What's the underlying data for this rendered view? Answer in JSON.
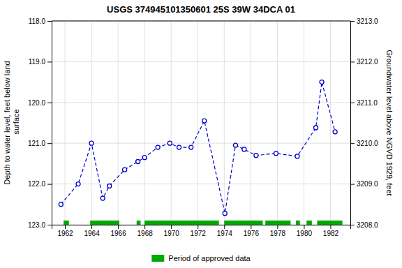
{
  "chart_data": {
    "type": "line",
    "title": "USGS 374945101350601 25S 39W 34DCA 01",
    "y_label": "Depth to water level, feet below land\n surface",
    "y2_label": "Groundwater level above NGVD 1929, feet",
    "x": [
      1961.7,
      1963.0,
      1964.0,
      1964.85,
      1965.35,
      1966.5,
      1967.5,
      1968.0,
      1969.0,
      1969.9,
      1970.6,
      1971.5,
      1972.5,
      1974.05,
      1974.85,
      1975.5,
      1976.4,
      1977.9,
      1979.5,
      1980.9,
      1981.35,
      1982.35
    ],
    "series": [
      {
        "color": "#0000cc",
        "marker": "circle",
        "line_style": "dashed",
        "values": [
          122.5,
          122.0,
          121.0,
          122.35,
          122.05,
          121.65,
          121.45,
          121.35,
          121.1,
          121.0,
          121.1,
          121.1,
          120.45,
          122.72,
          121.05,
          121.15,
          121.3,
          121.25,
          121.32,
          120.62,
          119.5,
          120.72
        ]
      },
      {
        "name": "Period of approved data",
        "type": "span",
        "color": "#00aa00",
        "ranges": [
          [
            1961.9,
            1962.3
          ],
          [
            1963.9,
            1966.1
          ],
          [
            1967.4,
            1967.7
          ],
          [
            1968.0,
            1973.6
          ],
          [
            1974.0,
            1976.9
          ],
          [
            1977.1,
            1979.0
          ],
          [
            1979.4,
            1979.7
          ],
          [
            1980.2,
            1980.6
          ],
          [
            1981.0,
            1982.9
          ]
        ]
      }
    ],
    "xlim": [
      1961.0,
      1983.5
    ],
    "xticks": [
      1962,
      1964,
      1966,
      1968,
      1970,
      1972,
      1974,
      1976,
      1978,
      1980,
      1982
    ],
    "ylim": [
      123.0,
      118.0
    ],
    "yticks": [
      {
        "value": 118.0,
        "label": "118.0"
      },
      {
        "value": 119.0,
        "label": "119.0"
      },
      {
        "value": 120.0,
        "label": "120.0"
      },
      {
        "value": 121.0,
        "label": "121.0"
      },
      {
        "value": 122.0,
        "label": "122.0"
      },
      {
        "value": 123.0,
        "label": "123.0"
      }
    ],
    "y2lim": [
      3208.0,
      3213.0
    ],
    "y2ticks": [
      {
        "value": 3208.0,
        "label": "3208.0"
      },
      {
        "value": 3209.0,
        "label": "3209.0"
      },
      {
        "value": 3210.0,
        "label": "3210.0"
      },
      {
        "value": 3211.0,
        "label": "3211.0"
      },
      {
        "value": 3212.0,
        "label": "3212.0"
      },
      {
        "value": 3213.0,
        "label": "3213.0"
      }
    ],
    "grid": true,
    "legend": "bottom"
  }
}
